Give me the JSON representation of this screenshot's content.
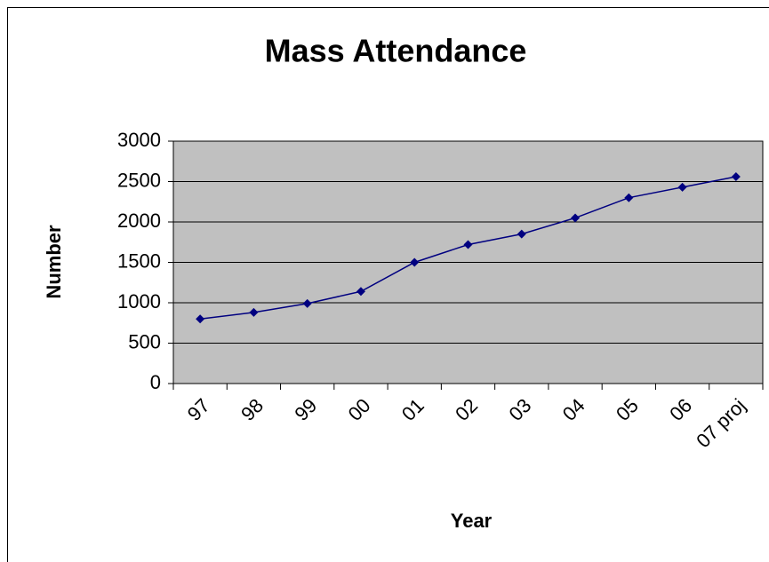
{
  "chart_data": {
    "type": "line",
    "title": "Mass Attendance",
    "x_label": "Year",
    "y_label": "Number",
    "categories": [
      "97",
      "98",
      "99",
      "00",
      "01",
      "02",
      "03",
      "04",
      "05",
      "06",
      "07 proj"
    ],
    "series": [
      {
        "name": "Number",
        "color": "#000080",
        "values": [
          800,
          880,
          990,
          1140,
          1500,
          1720,
          1850,
          2050,
          2300,
          2430,
          2560
        ]
      }
    ],
    "ylim": [
      0,
      3000
    ],
    "yticks": [
      0,
      500,
      1000,
      1500,
      2000,
      2500,
      3000
    ],
    "grid": true
  }
}
